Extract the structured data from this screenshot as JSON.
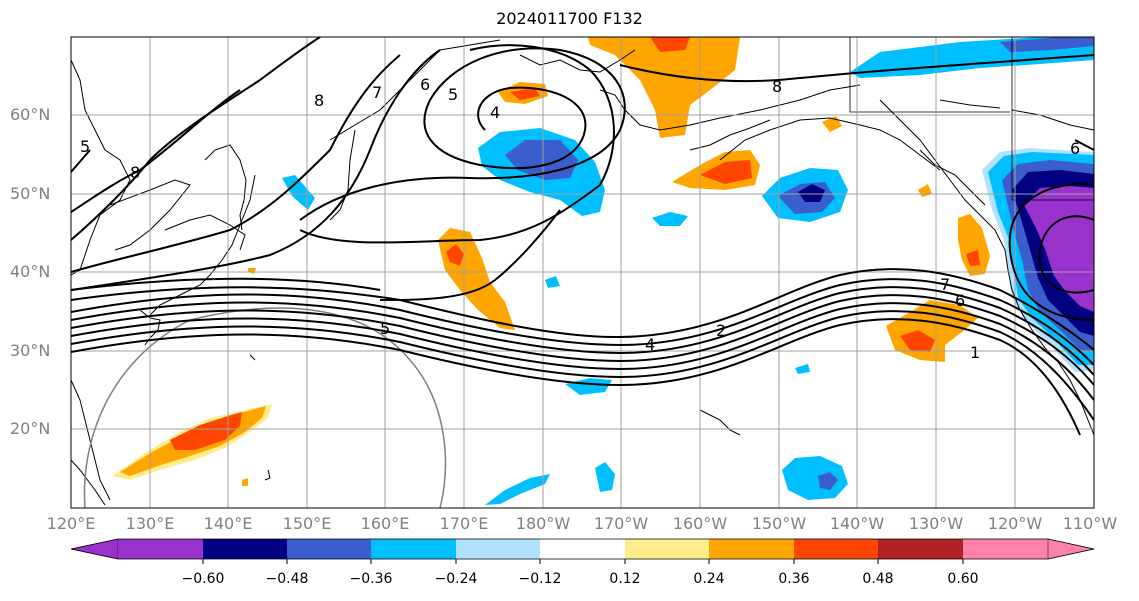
{
  "title": "2024011700 F132",
  "lat_labels": [
    "60°N",
    "50°N",
    "40°N",
    "30°N",
    "20°N"
  ],
  "lon_labels": [
    "120°E",
    "130°E",
    "140°E",
    "150°E",
    "160°E",
    "170°E",
    "180°W",
    "170°W",
    "160°W",
    "150°W",
    "140°W",
    "130°W",
    "120°W",
    "110°W"
  ],
  "contour_labels": [
    "8",
    "7",
    "6",
    "5",
    "4",
    "8",
    "8",
    "7",
    "6",
    "5",
    "4",
    "2",
    "1",
    "6",
    "5"
  ],
  "colorbar": {
    "ticks": [
      "−0.60",
      "−0.48",
      "−0.36",
      "−0.24",
      "−0.12",
      "0.12",
      "0.24",
      "0.36",
      "0.48",
      "0.60"
    ],
    "colors": [
      "#9932cc",
      "#000080",
      "#3a5fcd",
      "#00bfff",
      "#b0e2ff",
      "#ffffff",
      "#ffec8b",
      "#ffa500",
      "#ff4500",
      "#b22222",
      "#ff82ab"
    ]
  },
  "colors": {
    "grid": "#a0a0a0",
    "axis_label": "#808080"
  }
}
